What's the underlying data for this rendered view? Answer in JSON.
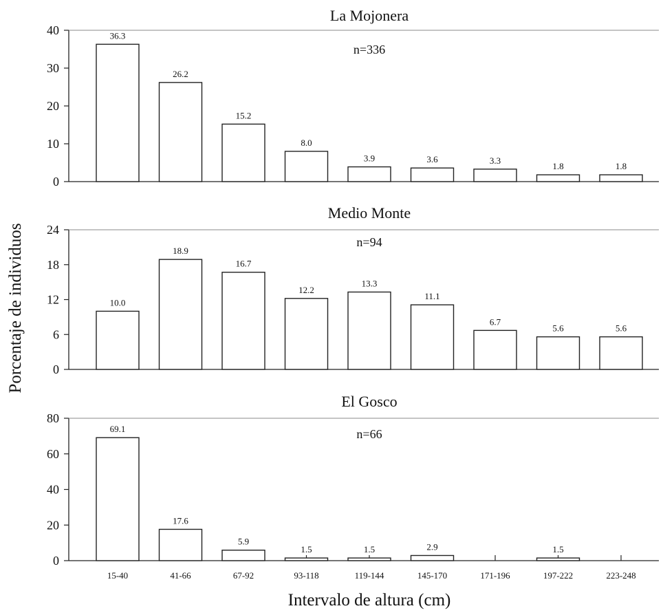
{
  "figure": {
    "ylabel": "Porcentaje de individuos",
    "xlabel": "Intervalo de altura (cm)"
  },
  "chart_data": [
    {
      "type": "bar",
      "title": "La Mojonera",
      "annotation": "n=336",
      "categories": [
        "15-40",
        "41-66",
        "67-92",
        "93-118",
        "119-144",
        "145-170",
        "171-196",
        "197-222",
        "223-248"
      ],
      "values": [
        36.3,
        26.2,
        15.2,
        8.0,
        3.9,
        3.6,
        3.3,
        1.8,
        1.8
      ],
      "data_labels": [
        "36.3",
        "26.2",
        "15.2",
        "8.0",
        "3.9",
        "3.6",
        "3.3",
        "1.8",
        "1.8"
      ],
      "yticks": [
        "0",
        "10",
        "20",
        "30",
        "40"
      ],
      "ylim": [
        0,
        40
      ],
      "show_xtick_labels": false
    },
    {
      "type": "bar",
      "title": "Medio Monte",
      "annotation": "n=94",
      "categories": [
        "15-40",
        "41-66",
        "67-92",
        "93-118",
        "119-144",
        "145-170",
        "171-196",
        "197-222",
        "223-248"
      ],
      "values": [
        10.0,
        18.9,
        16.7,
        12.2,
        13.3,
        11.1,
        6.7,
        5.6,
        5.6
      ],
      "data_labels": [
        "10.0",
        "18.9",
        "16.7",
        "12.2",
        "13.3",
        "11.1",
        "6.7",
        "5.6",
        "5.6"
      ],
      "yticks": [
        "0",
        "6",
        "12",
        "18",
        "24"
      ],
      "ylim": [
        0,
        24
      ],
      "show_xtick_labels": false
    },
    {
      "type": "bar",
      "title": "El Gosco",
      "annotation": "n=66",
      "categories": [
        "15-40",
        "41-66",
        "67-92",
        "93-118",
        "119-144",
        "145-170",
        "171-196",
        "197-222",
        "223-248"
      ],
      "values": [
        69.1,
        17.6,
        5.9,
        1.5,
        1.5,
        2.9,
        0,
        1.5,
        0
      ],
      "data_labels": [
        "69.1",
        "17.6",
        "5.9",
        "1.5",
        "1.5",
        "2.9",
        "",
        "1.5",
        ""
      ],
      "yticks": [
        "0",
        "20",
        "40",
        "60",
        "80"
      ],
      "ylim": [
        0,
        80
      ],
      "show_xtick_labels": true
    }
  ]
}
